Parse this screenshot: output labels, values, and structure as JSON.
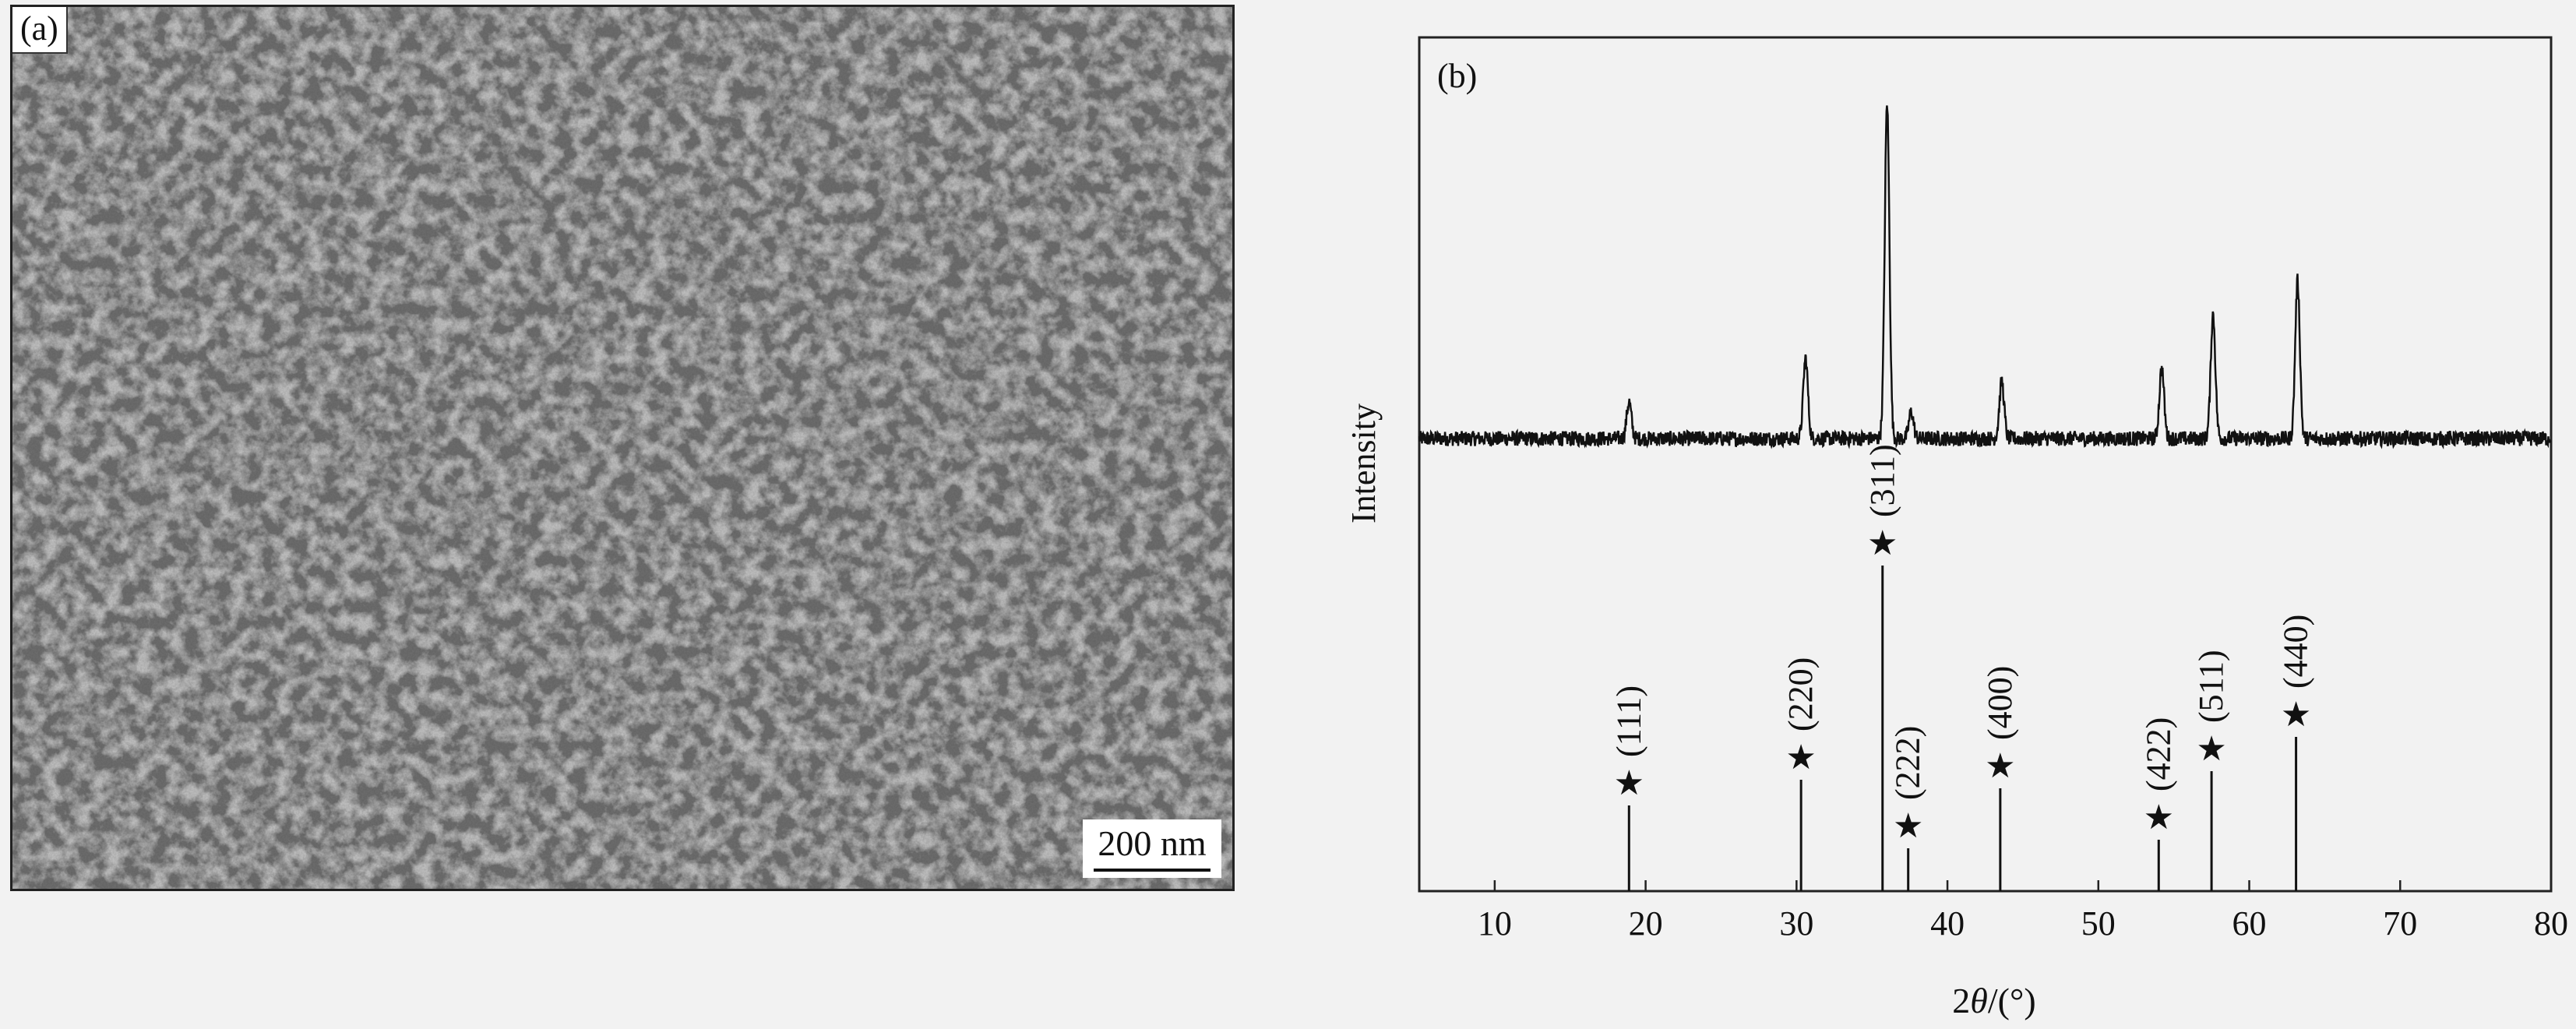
{
  "panel_a": {
    "label": "(a)",
    "scale_bar": "200 nm"
  },
  "chart_data": {
    "type": "line",
    "panel_label": "(b)",
    "xlabel": "2θ/(°)",
    "ylabel": "Intensity",
    "xlim": [
      5,
      80
    ],
    "x_ticks": [
      10,
      20,
      30,
      40,
      50,
      60,
      70,
      80
    ],
    "x_tick_labels": [
      "10",
      "20",
      "30",
      "40",
      "50",
      "60",
      "70",
      "80"
    ],
    "grid": false,
    "series": [
      {
        "values_relative": true,
        "baseline": 0.02,
        "peaks": [
          {
            "x": 18.9,
            "height": 0.11
          },
          {
            "x": 30.6,
            "height": 0.24
          },
          {
            "x": 36.0,
            "height": 1.0
          },
          {
            "x": 37.6,
            "height": 0.08
          },
          {
            "x": 43.6,
            "height": 0.17
          },
          {
            "x": 54.2,
            "height": 0.21
          },
          {
            "x": 57.6,
            "height": 0.37
          },
          {
            "x": 63.2,
            "height": 0.47
          }
        ]
      }
    ],
    "reference_lines": [
      {
        "x": 18.9,
        "hkl": "(111)",
        "height": 0.1
      },
      {
        "x": 30.3,
        "hkl": "(220)",
        "height": 0.13
      },
      {
        "x": 35.7,
        "hkl": "(311)",
        "height": 0.38
      },
      {
        "x": 37.4,
        "hkl": "(222)",
        "height": 0.05
      },
      {
        "x": 43.5,
        "hkl": "(400)",
        "height": 0.12
      },
      {
        "x": 54.0,
        "hkl": "(422)",
        "height": 0.06
      },
      {
        "x": 57.5,
        "hkl": "(511)",
        "height": 0.14
      },
      {
        "x": 63.1,
        "hkl": "(440)",
        "height": 0.18
      }
    ],
    "marker": "★"
  }
}
